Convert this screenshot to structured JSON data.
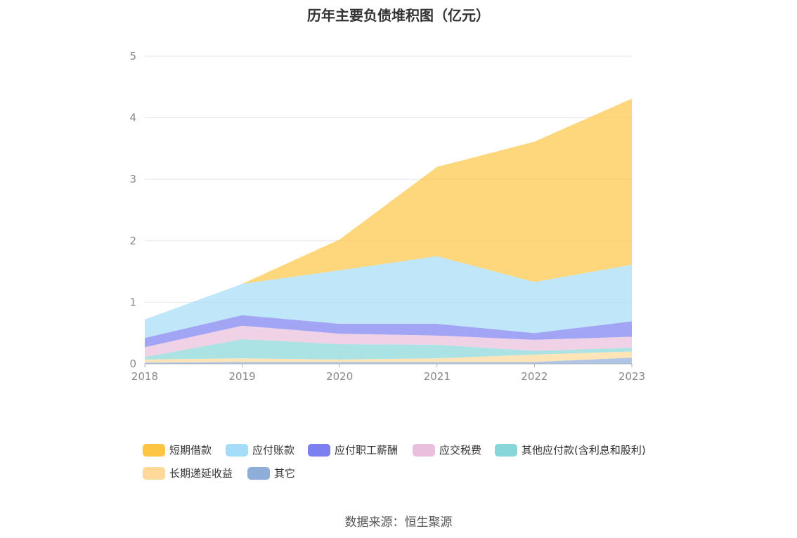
{
  "title": "历年主要负债堆积图（亿元）",
  "source": "数据来源：恒生聚源",
  "chart_data": {
    "type": "area",
    "stacked": true,
    "x": [
      "2018",
      "2019",
      "2020",
      "2021",
      "2022",
      "2023"
    ],
    "ylim": [
      0,
      5
    ],
    "yticks": [
      "0",
      "1",
      "2",
      "3",
      "4",
      "5"
    ],
    "grid": true,
    "legend_position": "bottom",
    "series": [
      {
        "name": "其它",
        "color": "#8eaed9",
        "values": [
          0.02,
          0.03,
          0.03,
          0.03,
          0.03,
          0.1
        ]
      },
      {
        "name": "长期递延收益",
        "color": "#ffd89a",
        "values": [
          0.05,
          0.06,
          0.04,
          0.06,
          0.12,
          0.1
        ]
      },
      {
        "name": "其他应付款(含利息和股利)",
        "color": "#88d6d8",
        "values": [
          0.04,
          0.31,
          0.25,
          0.22,
          0.06,
          0.06
        ]
      },
      {
        "name": "应交税费",
        "color": "#eabfdd",
        "values": [
          0.16,
          0.22,
          0.17,
          0.15,
          0.18,
          0.18
        ]
      },
      {
        "name": "应付职工薪酬",
        "color": "#7b7ff0",
        "values": [
          0.15,
          0.17,
          0.16,
          0.19,
          0.11,
          0.25
        ]
      },
      {
        "name": "应付账款",
        "color": "#a5dcf7",
        "values": [
          0.3,
          0.51,
          0.87,
          1.1,
          0.83,
          0.92
        ]
      },
      {
        "name": "短期借款",
        "color": "#fdc543",
        "values": [
          0,
          0,
          0.5,
          1.45,
          2.28,
          2.7
        ]
      }
    ]
  },
  "legend": {
    "items": [
      {
        "label": "短期借款",
        "color": "#fdc543"
      },
      {
        "label": "应付账款",
        "color": "#a5dcf7"
      },
      {
        "label": "应付职工薪酬",
        "color": "#7b7ff0"
      },
      {
        "label": "应交税费",
        "color": "#eabfdd"
      },
      {
        "label": "其他应付款(含利息和股利)",
        "color": "#88d6d8"
      },
      {
        "label": "长期递延收益",
        "color": "#ffd89a"
      },
      {
        "label": "其它",
        "color": "#8eaed9"
      }
    ]
  }
}
